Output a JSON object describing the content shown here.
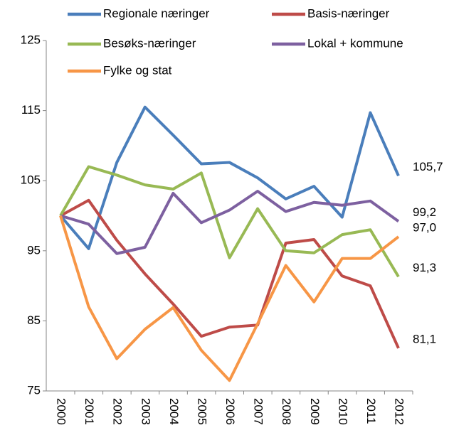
{
  "chart_data": {
    "type": "line",
    "categories": [
      "2000",
      "2001",
      "2002",
      "2003",
      "2004",
      "2005",
      "2006",
      "2007",
      "2008",
      "2009",
      "2010",
      "2011",
      "2012"
    ],
    "ylim": [
      75,
      125
    ],
    "yticks": [
      75,
      85,
      95,
      105,
      115,
      125
    ],
    "series": [
      {
        "name": "Regionale næringer",
        "color": "#4a7ebb",
        "values": [
          100,
          95.3,
          107.6,
          115.5,
          111.5,
          107.4,
          107.6,
          105.4,
          102.4,
          104.2,
          99.8,
          114.7,
          105.7
        ],
        "value_labels": [
          null,
          null,
          null,
          null,
          null,
          null,
          null,
          null,
          null,
          null,
          null,
          null,
          "105,7"
        ]
      },
      {
        "name": "Basis-næringer",
        "color": "#be4b48",
        "values": [
          100,
          102.2,
          96.5,
          91.7,
          87.4,
          82.8,
          84.1,
          84.4,
          96.1,
          96.6,
          91.4,
          90.0,
          81.1
        ],
        "value_labels": [
          null,
          null,
          null,
          null,
          null,
          null,
          null,
          null,
          null,
          null,
          null,
          null,
          "81,1"
        ]
      },
      {
        "name": "Besøks-næringer",
        "color": "#98b954",
        "values": [
          100,
          107.0,
          105.8,
          104.4,
          103.8,
          106.1,
          94.0,
          101.0,
          95.0,
          94.7,
          97.3,
          98.0,
          91.3
        ],
        "value_labels": [
          null,
          null,
          null,
          null,
          null,
          null,
          null,
          null,
          null,
          null,
          null,
          null,
          "91,3"
        ]
      },
      {
        "name": "Lokal + kommune",
        "color": "#7d60a0",
        "values": [
          100,
          98.8,
          94.6,
          95.5,
          103.2,
          99.0,
          100.8,
          103.5,
          100.6,
          101.9,
          101.5,
          102.1,
          99.2
        ],
        "value_labels": [
          null,
          null,
          null,
          null,
          null,
          null,
          null,
          null,
          null,
          null,
          null,
          null,
          "99,2"
        ]
      },
      {
        "name": "Fylke og stat",
        "color": "#f79646",
        "values": [
          100,
          87.0,
          79.6,
          83.8,
          86.9,
          80.8,
          76.5,
          84.6,
          92.9,
          87.7,
          93.9,
          93.9,
          97.0
        ],
        "value_labels": [
          null,
          null,
          null,
          null,
          null,
          null,
          null,
          null,
          null,
          null,
          null,
          null,
          "97,0"
        ]
      }
    ]
  }
}
